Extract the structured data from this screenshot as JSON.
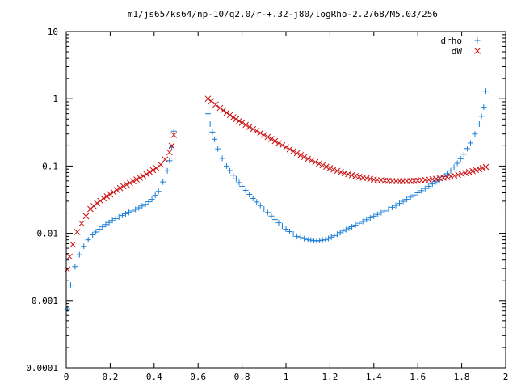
{
  "chart_data": {
    "type": "scatter",
    "title": "m1/js65/ks64/np-10/q2.0/r-+.32-j80/logRho-2.2768/M5.03/256",
    "xlabel": "",
    "ylabel": "",
    "xlim": [
      0,
      2
    ],
    "ylim": [
      0.0001,
      10
    ],
    "yscale": "log",
    "x_ticks": [
      "0",
      "0.2",
      "0.4",
      "0.6",
      "0.8",
      "1",
      "1.2",
      "1.4",
      "1.6",
      "1.8",
      "2"
    ],
    "y_ticks": [
      "0.0001",
      "0.001",
      "0.01",
      "0.1",
      "1",
      "10"
    ],
    "grid": false,
    "legend_position": "top-right",
    "series": [
      {
        "name": "drho",
        "marker": "+",
        "color": "#1a7dd6",
        "segments": [
          {
            "x": [
              0.005,
              0.02,
              0.04,
              0.06,
              0.08,
              0.1,
              0.12,
              0.15,
              0.18,
              0.21,
              0.24,
              0.27,
              0.3,
              0.33,
              0.36,
              0.39,
              0.42,
              0.44,
              0.46,
              0.47,
              0.48,
              0.49
            ],
            "y": [
              0.00075,
              0.0017,
              0.0032,
              0.0048,
              0.0064,
              0.008,
              0.0095,
              0.0115,
              0.0135,
              0.0155,
              0.0175,
              0.0195,
              0.0215,
              0.024,
              0.027,
              0.032,
              0.042,
              0.058,
              0.085,
              0.12,
              0.19,
              0.33
            ]
          },
          {
            "x": [
              0.645,
              0.655,
              0.665,
              0.675,
              0.69,
              0.71,
              0.73,
              0.76,
              0.8,
              0.85,
              0.9,
              0.95,
              1.0,
              1.05,
              1.1,
              1.14,
              1.18,
              1.22,
              1.26,
              1.3,
              1.35,
              1.4,
              1.45,
              1.5,
              1.55,
              1.6,
              1.65,
              1.7,
              1.75,
              1.78,
              1.81,
              1.84,
              1.86,
              1.88,
              1.89,
              1.9,
              1.91
            ],
            "y": [
              0.6,
              0.42,
              0.32,
              0.25,
              0.18,
              0.13,
              0.1,
              0.073,
              0.05,
              0.033,
              0.023,
              0.016,
              0.0115,
              0.009,
              0.008,
              0.0077,
              0.008,
              0.0092,
              0.0108,
              0.0125,
              0.015,
              0.018,
              0.0215,
              0.026,
              0.032,
              0.04,
              0.05,
              0.063,
              0.085,
              0.11,
              0.15,
              0.22,
              0.3,
              0.42,
              0.55,
              0.75,
              1.3
            ]
          }
        ]
      },
      {
        "name": "dW",
        "marker": "x",
        "color": "#cc1111",
        "segments": [
          {
            "x": [
              0.005,
              0.015,
              0.03,
              0.05,
              0.07,
              0.09,
              0.11,
              0.14,
              0.17,
              0.2,
              0.23,
              0.26,
              0.29,
              0.32,
              0.35,
              0.38,
              0.41,
              0.43,
              0.45,
              0.47,
              0.48,
              0.49
            ],
            "y": [
              0.0029,
              0.0045,
              0.0068,
              0.0105,
              0.014,
              0.018,
              0.023,
              0.028,
              0.033,
              0.038,
              0.044,
              0.05,
              0.056,
              0.063,
              0.071,
              0.081,
              0.093,
              0.105,
              0.125,
              0.16,
              0.2,
              0.29
            ]
          },
          {
            "x": [
              0.645,
              0.66,
              0.68,
              0.7,
              0.73,
              0.76,
              0.8,
              0.85,
              0.9,
              0.95,
              1.0,
              1.05,
              1.1,
              1.15,
              1.2,
              1.25,
              1.3,
              1.35,
              1.4,
              1.45,
              1.5,
              1.55,
              1.6,
              1.65,
              1.7,
              1.75,
              1.8,
              1.85,
              1.88,
              1.91
            ],
            "y": [
              1.0,
              0.92,
              0.82,
              0.73,
              0.62,
              0.53,
              0.44,
              0.355,
              0.29,
              0.235,
              0.19,
              0.155,
              0.128,
              0.108,
              0.093,
              0.081,
              0.073,
              0.067,
              0.063,
              0.0605,
              0.0595,
              0.0595,
              0.0605,
              0.0625,
              0.0655,
              0.07,
              0.076,
              0.084,
              0.09,
              0.097
            ]
          }
        ]
      }
    ]
  }
}
